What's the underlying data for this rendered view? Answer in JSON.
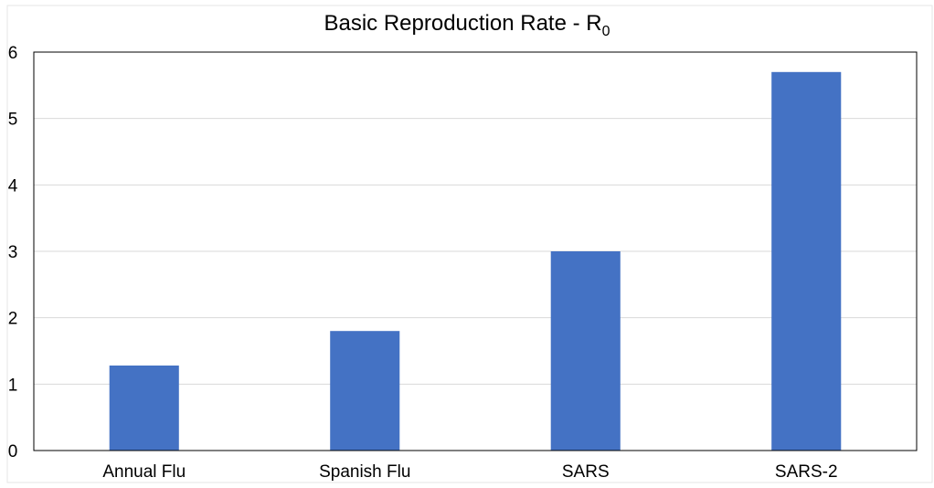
{
  "chart_data": {
    "type": "bar",
    "title": "Basic Reproduction Rate - R",
    "title_subscript": "0",
    "categories": [
      "Annual Flu",
      "Spanish Flu",
      "SARS",
      "SARS-2"
    ],
    "values": [
      1.28,
      1.8,
      3.0,
      5.7
    ],
    "ylim": [
      0,
      6
    ],
    "yticks": [
      "0",
      "1",
      "2",
      "3",
      "4",
      "5",
      "6"
    ],
    "xlabel": "",
    "ylabel": "",
    "grid": true,
    "bar_color": "#4472c4",
    "grid_color": "#d9d9d9",
    "axis_color": "#000000"
  }
}
